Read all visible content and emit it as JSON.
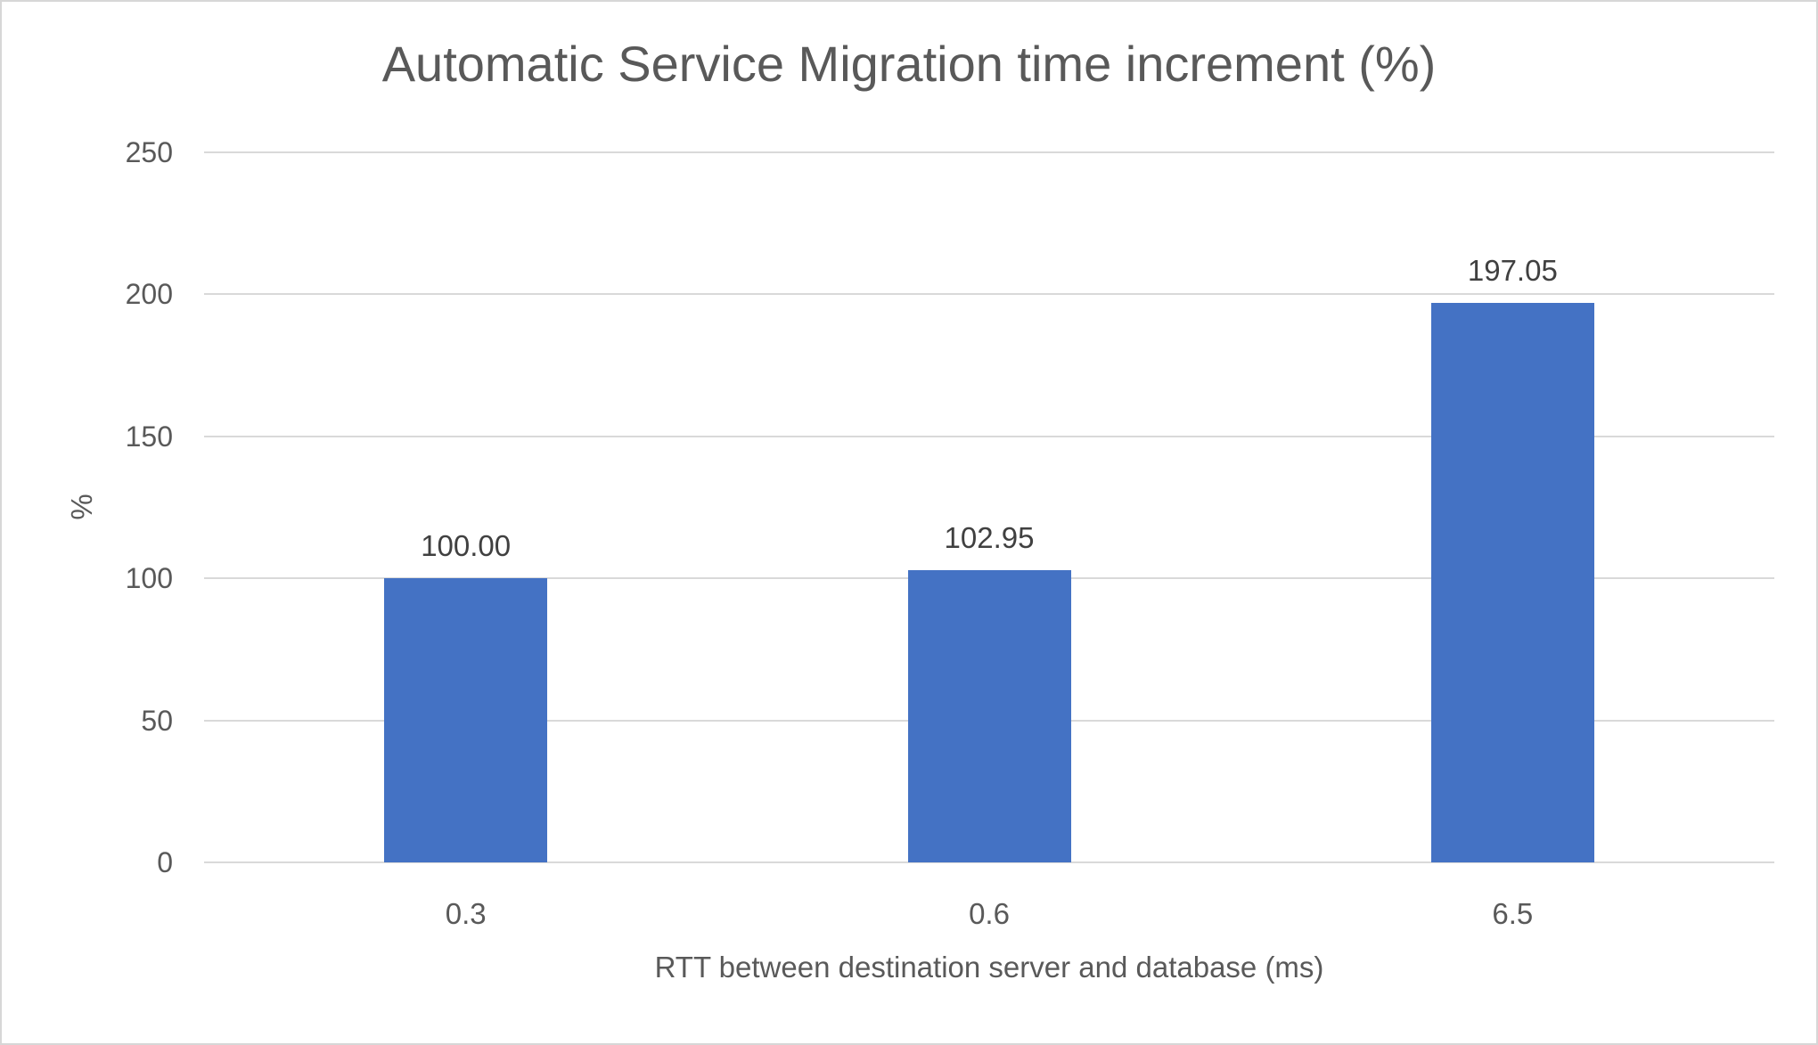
{
  "chart_data": {
    "type": "bar",
    "title": "Automatic Service Migration time increment (%)",
    "xlabel": "RTT between destination server and database (ms)",
    "ylabel": "%",
    "categories": [
      "0.3",
      "0.6",
      "6.5"
    ],
    "values": [
      100.0,
      102.95,
      197.05
    ],
    "data_labels": [
      "100.00",
      "102.95",
      "197.05"
    ],
    "ylim": [
      0,
      250
    ],
    "yticks": [
      "0",
      "50",
      "100",
      "150",
      "200",
      "250"
    ],
    "grid": true,
    "legend": false,
    "bar_color": "#4472C4",
    "gridline_color": "#D9D9D9",
    "axis_text_color": "#595959",
    "data_label_color": "#404040",
    "background_color": "#FFFFFF",
    "border_color": "#D7D7D7"
  }
}
